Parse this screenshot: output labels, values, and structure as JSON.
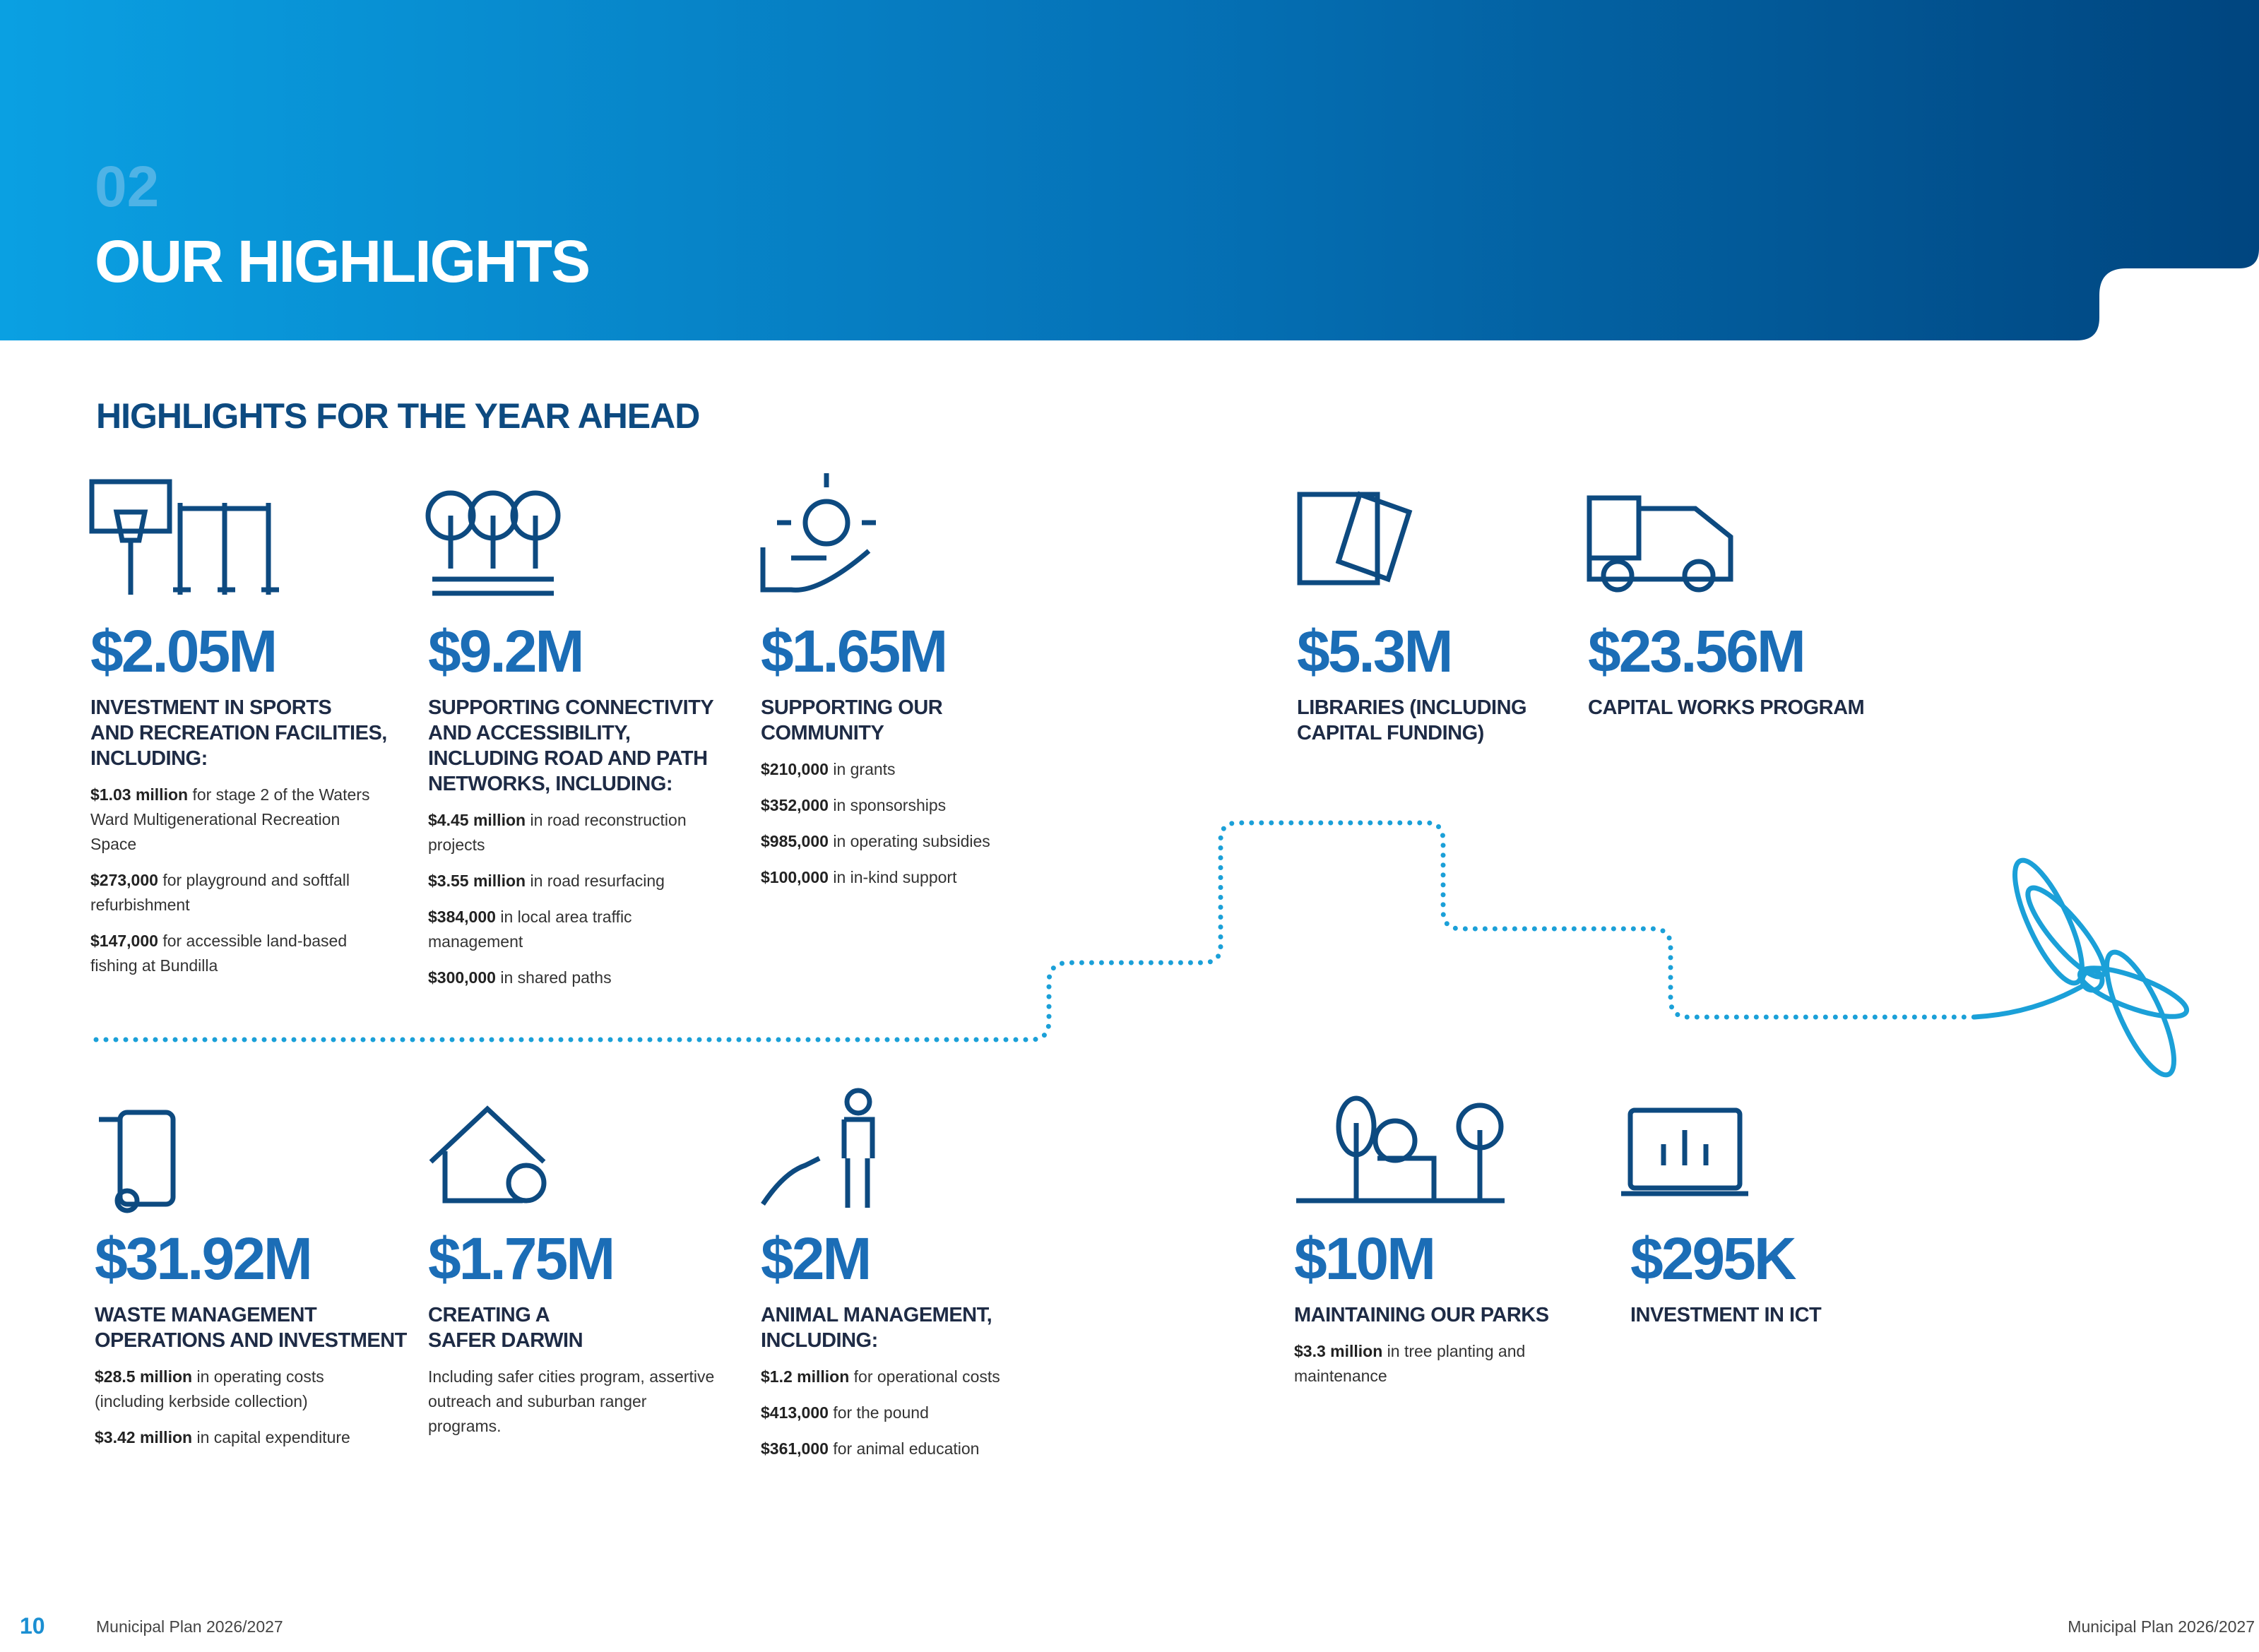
{
  "header": {
    "number": "02",
    "title": "OUR HIGHLIGHTS"
  },
  "section_title": "HIGHLIGHTS FOR THE YEAR AHEAD",
  "items": [
    {
      "amount": "$2.05M",
      "heading": [
        "INVESTMENT IN SPORTS",
        "AND RECREATION FACILITIES,",
        "INCLUDING:"
      ],
      "details": [
        {
          "bold": "$1.03 million",
          "text": " for stage 2 of the Waters Ward Multigenerational Recreation Space"
        },
        {
          "bold": "$273,000",
          "text": " for playground and softfall refurbishment"
        },
        {
          "bold": "$147,000",
          "text": " for accessible land-based fishing at Bundilla"
        }
      ]
    },
    {
      "amount": "$9.2M",
      "heading": [
        "SUPPORTING CONNECTIVITY",
        "AND ACCESSIBILITY,",
        "INCLUDING ROAD AND PATH",
        "NETWORKS, INCLUDING:"
      ],
      "details": [
        {
          "bold": "$4.45 million",
          "text": " in road reconstruction projects"
        },
        {
          "bold": "$3.55 million",
          "text": " in road resurfacing"
        },
        {
          "bold": "$384,000",
          "text": " in local area traffic management"
        },
        {
          "bold": "$300,000",
          "text": " in shared paths"
        }
      ]
    },
    {
      "amount": "$1.65M",
      "heading": [
        "SUPPORTING OUR",
        "COMMUNITY"
      ],
      "details": [
        {
          "bold": "$210,000",
          "text": " in grants"
        },
        {
          "bold": "$352,000",
          "text": " in sponsorships"
        },
        {
          "bold": "$985,000",
          "text": " in operating subsidies"
        },
        {
          "bold": "$100,000",
          "text": " in in-kind support"
        }
      ]
    },
    {
      "amount": "$5.3M",
      "heading": [
        "LIBRARIES (INCLUDING",
        "CAPITAL FUNDING)"
      ],
      "details": []
    },
    {
      "amount": "$23.56M",
      "heading": [
        "CAPITAL WORKS PROGRAM"
      ],
      "details": []
    },
    {
      "amount": "$31.92M",
      "heading": [
        "WASTE MANAGEMENT",
        "OPERATIONS AND INVESTMENT"
      ],
      "details": [
        {
          "bold": "$28.5 million",
          "text": " in operating costs (including kerbside collection)"
        },
        {
          "bold": "$3.42 million",
          "text": "  in capital expenditure"
        }
      ]
    },
    {
      "amount": "$1.75M",
      "heading": [
        "CREATING A",
        "SAFER DARWIN"
      ],
      "details": [
        {
          "text": "Including safer cities program, assertive outreach and suburban ranger programs."
        }
      ]
    },
    {
      "amount": "$2M",
      "heading": [
        "ANIMAL MANAGEMENT,",
        "INCLUDING:"
      ],
      "details": [
        {
          "bold": "$1.2 million",
          "text": " for operational costs"
        },
        {
          "bold": "$413,000",
          "text": " for the pound"
        },
        {
          "bold": "$361,000",
          "text": " for animal education"
        }
      ]
    },
    {
      "amount": "$10M",
      "heading": [
        "MAINTAINING OUR PARKS"
      ],
      "details": [
        {
          "bold": "$3.3 million",
          "text": " in tree planting and maintenance"
        }
      ]
    },
    {
      "amount": "$295K",
      "heading": [
        "INVESTMENT IN ICT"
      ],
      "details": []
    }
  ],
  "footer": {
    "page": "10",
    "left": "Municipal Plan 2026/2027",
    "right": "Municipal Plan 2026/2027"
  }
}
